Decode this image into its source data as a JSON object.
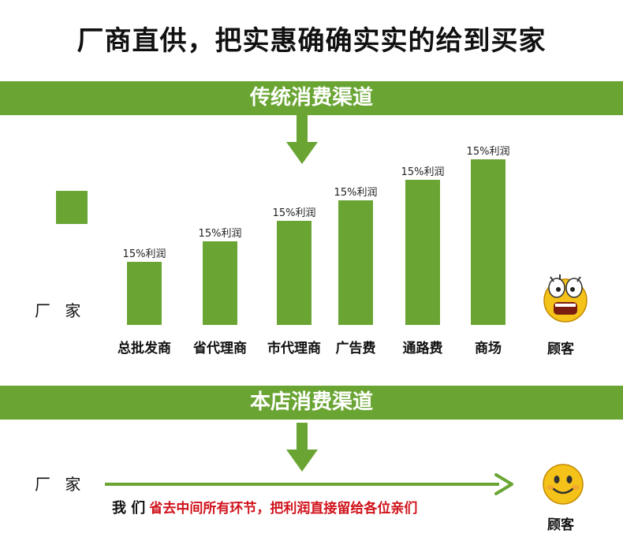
{
  "headline": "厂商直供，把实惠确确实实的给到买家",
  "colors": {
    "green": "#6aa534",
    "red": "#d0121b",
    "face": "#f5c21a"
  },
  "section_traditional": {
    "banner": "传统消费渠道",
    "left_label": "厂 家",
    "right_label": "顾客",
    "channels": [
      {
        "label": "总批发商",
        "profit": "15%利润",
        "level": 1
      },
      {
        "label": "省代理商",
        "profit": "15%利润",
        "level": 2
      },
      {
        "label": "市代理商",
        "profit": "15%利润",
        "level": 3
      },
      {
        "label": "广告费",
        "profit": "15%利润",
        "level": 4
      },
      {
        "label": "通路费",
        "profit": "15%利润",
        "level": 5
      },
      {
        "label": "商场",
        "profit": "15%利润",
        "level": 6
      }
    ]
  },
  "section_store": {
    "banner": "本店消费渠道",
    "left_label": "厂 家",
    "right_label": "顾客",
    "note_prefix": "我 们",
    "note_body": "省去中间所有环节，把利润直接留给各位亲们"
  }
}
